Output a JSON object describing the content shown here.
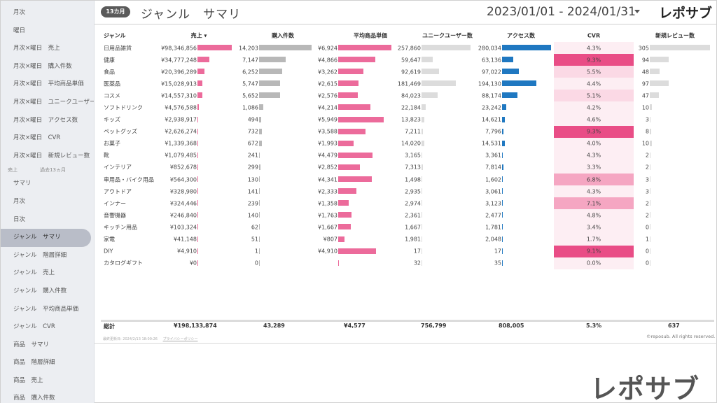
{
  "sidebar": {
    "items_top": [
      "月次",
      "曜日",
      "月次×曜日　売上",
      "月次×曜日　購入件数",
      "月次×曜日　平均商品単価",
      "月次×曜日　ユニークユーザー数",
      "月次×曜日　アクセス数",
      "月次×曜日　CVR",
      "月次×曜日　新規レビュー数"
    ],
    "group": {
      "label": "売上",
      "sub": "過去13ヵ月"
    },
    "items_bottom": [
      "サマリ",
      "月次",
      "日次",
      "ジャンル　サマリ",
      "ジャンル　階層詳細",
      "ジャンル　売上",
      "ジャンル　購入件数",
      "ジャンル　平均商品単価",
      "ジャンル　CVR",
      "商品　サマリ",
      "商品　階層詳細",
      "商品　売上",
      "商品　購入件数"
    ],
    "active_index": 3
  },
  "header": {
    "badge": "13カ月",
    "title": "ジャンル　サマリ",
    "date_range": "2023/01/01 - 2024/01/31",
    "logo": "レポサブ"
  },
  "table": {
    "headers": [
      "ジャンル",
      "売上 ▾",
      "購入件数",
      "平均商品単価",
      "ユニークユーザー数",
      "アクセス数",
      "CVR",
      "新規レビュー数"
    ],
    "rows": [
      {
        "genre": "日用品雑貨",
        "sales": "¥98,346,856",
        "orders": "14,203",
        "avg_price": "¥6,924",
        "users": "257,860",
        "access": "280,034",
        "cvr": "4.3%",
        "reviews": "305",
        "sales_v": 98346856,
        "orders_v": 14203,
        "avg_v": 6924,
        "users_v": 257860,
        "access_v": 280034,
        "cvr_v": 4.3,
        "reviews_v": 305
      },
      {
        "genre": "健康",
        "sales": "¥34,777,248",
        "orders": "7,147",
        "avg_price": "¥4,866",
        "users": "59,647",
        "access": "63,136",
        "cvr": "9.3%",
        "reviews": "94",
        "sales_v": 34777248,
        "orders_v": 7147,
        "avg_v": 4866,
        "users_v": 59647,
        "access_v": 63136,
        "cvr_v": 9.3,
        "reviews_v": 94
      },
      {
        "genre": "食品",
        "sales": "¥20,396,289",
        "orders": "6,252",
        "avg_price": "¥3,262",
        "users": "92,619",
        "access": "97,022",
        "cvr": "5.5%",
        "reviews": "48",
        "sales_v": 20396289,
        "orders_v": 6252,
        "avg_v": 3262,
        "users_v": 92619,
        "access_v": 97022,
        "cvr_v": 5.5,
        "reviews_v": 48
      },
      {
        "genre": "医薬品",
        "sales": "¥15,028,913",
        "orders": "5,747",
        "avg_price": "¥2,615",
        "users": "181,469",
        "access": "194,130",
        "cvr": "4.4%",
        "reviews": "97",
        "sales_v": 15028913,
        "orders_v": 5747,
        "avg_v": 2615,
        "users_v": 181469,
        "access_v": 194130,
        "cvr_v": 4.4,
        "reviews_v": 97
      },
      {
        "genre": "コスメ",
        "sales": "¥14,557,310",
        "orders": "5,652",
        "avg_price": "¥2,576",
        "users": "84,023",
        "access": "88,174",
        "cvr": "5.1%",
        "reviews": "47",
        "sales_v": 14557310,
        "orders_v": 5652,
        "avg_v": 2576,
        "users_v": 84023,
        "access_v": 88174,
        "cvr_v": 5.1,
        "reviews_v": 47
      },
      {
        "genre": "ソフトドリンク",
        "sales": "¥4,576,588",
        "orders": "1,086",
        "avg_price": "¥4,214",
        "users": "22,184",
        "access": "23,242",
        "cvr": "4.2%",
        "reviews": "10",
        "sales_v": 4576588,
        "orders_v": 1086,
        "avg_v": 4214,
        "users_v": 22184,
        "access_v": 23242,
        "cvr_v": 4.2,
        "reviews_v": 10
      },
      {
        "genre": "キッズ",
        "sales": "¥2,938,917",
        "orders": "494",
        "avg_price": "¥5,949",
        "users": "13,823",
        "access": "14,621",
        "cvr": "4.6%",
        "reviews": "3",
        "sales_v": 2938917,
        "orders_v": 494,
        "avg_v": 5949,
        "users_v": 13823,
        "access_v": 14621,
        "cvr_v": 4.6,
        "reviews_v": 3
      },
      {
        "genre": "ペットグッズ",
        "sales": "¥2,626,274",
        "orders": "732",
        "avg_price": "¥3,588",
        "users": "7,211",
        "access": "7,796",
        "cvr": "9.3%",
        "reviews": "8",
        "sales_v": 2626274,
        "orders_v": 732,
        "avg_v": 3588,
        "users_v": 7211,
        "access_v": 7796,
        "cvr_v": 9.3,
        "reviews_v": 8
      },
      {
        "genre": "お菓子",
        "sales": "¥1,339,368",
        "orders": "672",
        "avg_price": "¥1,993",
        "users": "14,020",
        "access": "14,531",
        "cvr": "4.0%",
        "reviews": "10",
        "sales_v": 1339368,
        "orders_v": 672,
        "avg_v": 1993,
        "users_v": 14020,
        "access_v": 14531,
        "cvr_v": 4.0,
        "reviews_v": 10
      },
      {
        "genre": "靴",
        "sales": "¥1,079,485",
        "orders": "241",
        "avg_price": "¥4,479",
        "users": "3,165",
        "access": "3,361",
        "cvr": "4.3%",
        "reviews": "2",
        "sales_v": 1079485,
        "orders_v": 241,
        "avg_v": 4479,
        "users_v": 3165,
        "access_v": 3361,
        "cvr_v": 4.3,
        "reviews_v": 2
      },
      {
        "genre": "インテリア",
        "sales": "¥852,678",
        "orders": "299",
        "avg_price": "¥2,852",
        "users": "7,313",
        "access": "7,814",
        "cvr": "3.3%",
        "reviews": "2",
        "sales_v": 852678,
        "orders_v": 299,
        "avg_v": 2852,
        "users_v": 7313,
        "access_v": 7814,
        "cvr_v": 3.3,
        "reviews_v": 2
      },
      {
        "genre": "車用品・バイク用品",
        "sales": "¥564,300",
        "orders": "130",
        "avg_price": "¥4,341",
        "users": "1,498",
        "access": "1,602",
        "cvr": "6.8%",
        "reviews": "3",
        "sales_v": 564300,
        "orders_v": 130,
        "avg_v": 4341,
        "users_v": 1498,
        "access_v": 1602,
        "cvr_v": 6.8,
        "reviews_v": 3
      },
      {
        "genre": "アウトドア",
        "sales": "¥328,980",
        "orders": "141",
        "avg_price": "¥2,333",
        "users": "2,935",
        "access": "3,061",
        "cvr": "4.3%",
        "reviews": "3",
        "sales_v": 328980,
        "orders_v": 141,
        "avg_v": 2333,
        "users_v": 2935,
        "access_v": 3061,
        "cvr_v": 4.3,
        "reviews_v": 3
      },
      {
        "genre": "インナー",
        "sales": "¥324,446",
        "orders": "239",
        "avg_price": "¥1,358",
        "users": "2,974",
        "access": "3,123",
        "cvr": "7.1%",
        "reviews": "2",
        "sales_v": 324446,
        "orders_v": 239,
        "avg_v": 1358,
        "users_v": 2974,
        "access_v": 3123,
        "cvr_v": 7.1,
        "reviews_v": 2
      },
      {
        "genre": "音響機器",
        "sales": "¥246,840",
        "orders": "140",
        "avg_price": "¥1,763",
        "users": "2,361",
        "access": "2,477",
        "cvr": "4.8%",
        "reviews": "2",
        "sales_v": 246840,
        "orders_v": 140,
        "avg_v": 1763,
        "users_v": 2361,
        "access_v": 2477,
        "cvr_v": 4.8,
        "reviews_v": 2
      },
      {
        "genre": "キッチン用品",
        "sales": "¥103,324",
        "orders": "62",
        "avg_price": "¥1,667",
        "users": "1,667",
        "access": "1,781",
        "cvr": "3.4%",
        "reviews": "0",
        "sales_v": 103324,
        "orders_v": 62,
        "avg_v": 1667,
        "users_v": 1667,
        "access_v": 1781,
        "cvr_v": 3.4,
        "reviews_v": 0
      },
      {
        "genre": "家電",
        "sales": "¥41,148",
        "orders": "51",
        "avg_price": "¥807",
        "users": "1,981",
        "access": "2,048",
        "cvr": "1.7%",
        "reviews": "1",
        "sales_v": 41148,
        "orders_v": 51,
        "avg_v": 807,
        "users_v": 1981,
        "access_v": 2048,
        "cvr_v": 1.7,
        "reviews_v": 1
      },
      {
        "genre": "DIY",
        "sales": "¥4,910",
        "orders": "1",
        "avg_price": "¥4,910",
        "users": "17",
        "access": "17",
        "cvr": "9.1%",
        "reviews": "0",
        "sales_v": 4910,
        "orders_v": 1,
        "avg_v": 4910,
        "users_v": 17,
        "access_v": 17,
        "cvr_v": 9.1,
        "reviews_v": 0
      },
      {
        "genre": "カタログギフト",
        "sales": "¥0",
        "orders": "0",
        "avg_price": "",
        "users": "32",
        "access": "35",
        "cvr": "0.0%",
        "reviews": "0",
        "sales_v": 0,
        "orders_v": 0,
        "avg_v": 0,
        "users_v": 32,
        "access_v": 35,
        "cvr_v": 0,
        "reviews_v": 0
      }
    ],
    "totals": {
      "label": "総計",
      "sales": "¥198,133,874",
      "orders": "43,289",
      "avg_price": "¥4,577",
      "users": "756,799",
      "access": "808,005",
      "cvr": "5.3%",
      "reviews": "637"
    }
  },
  "colors": {
    "pink": "#ec6b9b",
    "gray": "#b8b8b8",
    "light_gray": "#dcdcdc",
    "blue": "#1f78c1",
    "cvr_strong": "#e94d86",
    "cvr_mid": "#f5a6c2",
    "cvr_light": "#fbd9e5",
    "cvr_faint": "#fdeef3"
  },
  "footer": {
    "updated": "最終更新日: 2024/2/13 18:09:26",
    "privacy": "プライバシーポリシー",
    "copyright": "©reposub. All rights reserved."
  },
  "brand_mark": "レポサブ"
}
